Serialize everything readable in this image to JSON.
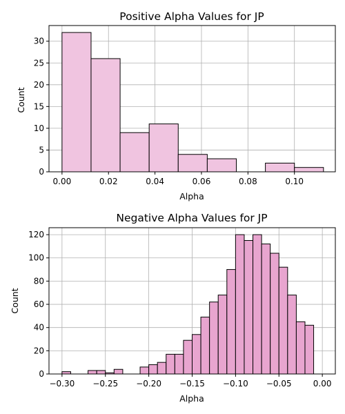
{
  "chart_data": [
    {
      "type": "bar",
      "title": "Positive Alpha Values for JP",
      "xlabel": "Alpha",
      "ylabel": "Count",
      "grid": true,
      "bar_color": "#f0c4e0",
      "edge_color": "#000000",
      "xlim": [
        -0.0056,
        0.1176
      ],
      "ylim": [
        0,
        33.6
      ],
      "xticks": [
        0.0,
        0.02,
        0.04,
        0.06,
        0.08,
        0.1
      ],
      "xtick_labels": [
        "0.00",
        "0.02",
        "0.04",
        "0.06",
        "0.08",
        "0.10"
      ],
      "yticks": [
        0,
        5,
        10,
        15,
        20,
        25,
        30
      ],
      "ytick_labels": [
        "0",
        "5",
        "10",
        "15",
        "20",
        "25",
        "30"
      ],
      "bins": [
        {
          "x0": 0.0,
          "x1": 0.0125,
          "count": 32
        },
        {
          "x0": 0.0125,
          "x1": 0.025,
          "count": 26
        },
        {
          "x0": 0.025,
          "x1": 0.0375,
          "count": 9
        },
        {
          "x0": 0.0375,
          "x1": 0.05,
          "count": 11
        },
        {
          "x0": 0.05,
          "x1": 0.0625,
          "count": 4
        },
        {
          "x0": 0.0625,
          "x1": 0.075,
          "count": 3
        },
        {
          "x0": 0.075,
          "x1": 0.0875,
          "count": 0
        },
        {
          "x0": 0.0875,
          "x1": 0.1,
          "count": 2
        },
        {
          "x0": 0.1,
          "x1": 0.1125,
          "count": 1
        }
      ]
    },
    {
      "type": "bar",
      "title": "Negative Alpha Values for JP",
      "xlabel": "Alpha",
      "ylabel": "Count",
      "grid": true,
      "bar_color": "#e8a5cf",
      "edge_color": "#000000",
      "xlim": [
        -0.315,
        0.015
      ],
      "ylim": [
        0,
        126
      ],
      "xticks": [
        -0.3,
        -0.25,
        -0.2,
        -0.15,
        -0.1,
        -0.05,
        0.0
      ],
      "xtick_labels": [
        "−0.30",
        "−0.25",
        "−0.20",
        "−0.15",
        "−0.10",
        "−0.05",
        "0.00"
      ],
      "yticks": [
        0,
        20,
        40,
        60,
        80,
        100,
        120
      ],
      "ytick_labels": [
        "0",
        "20",
        "40",
        "60",
        "80",
        "100",
        "120"
      ],
      "bin_start": -0.3,
      "bin_width": 0.01,
      "counts": [
        2,
        0,
        0,
        3,
        3,
        1,
        4,
        0,
        0,
        6,
        8,
        10,
        17,
        17,
        29,
        34,
        49,
        62,
        68,
        90,
        120,
        115,
        120,
        112,
        104,
        92,
        68,
        45,
        42
      ]
    }
  ]
}
